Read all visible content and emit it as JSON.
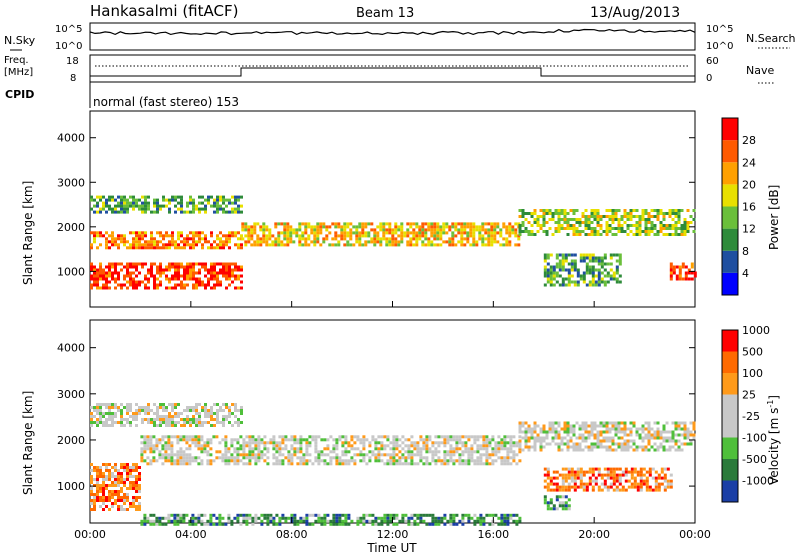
{
  "header": {
    "station": "Hankasalmi (fitACF)",
    "beam": "Beam 13",
    "date": "13/Aug/2013"
  },
  "panels": {
    "nsky_label": "N.Sky",
    "nsky_ticks": [
      "10^5",
      "10^0"
    ],
    "nsearch_label": "N.Search",
    "nsearch_ticks": [
      "10^5",
      "10^0"
    ],
    "freq_label_line1": "Freq.",
    "freq_label_line2": "[MHz]",
    "freq_ticks": [
      "18",
      "8"
    ],
    "nave_label": "Nave",
    "nave_ticks": [
      "60",
      "0"
    ],
    "cpid_label": "CPID",
    "cpid_text": "normal (fast stereo) 153"
  },
  "colors": {
    "power": [
      "#0000ff",
      "#1f4fa0",
      "#2e8b3a",
      "#6abf3a",
      "#e8e000",
      "#ffa000",
      "#ff5a00",
      "#ff0000"
    ],
    "velocity": [
      "#1b3fa6",
      "#2a7a3a",
      "#4fbf3a",
      "#c8c8c8",
      "#c8c8c8",
      "#ff9a1a",
      "#ff6a00",
      "#ff0000"
    ]
  },
  "chart_data": [
    {
      "type": "heatmap",
      "name": "power",
      "ylabel": "Slant Range [km]",
      "yticks": [
        1000,
        2000,
        3000,
        4000
      ],
      "ylim": [
        200,
        4600
      ],
      "xlim": [
        0,
        24
      ],
      "colorbar_label": "Power [dB]",
      "colorbar_ticks": [
        "4",
        "8",
        "12",
        "16",
        "20",
        "24",
        "28"
      ],
      "bands": [
        {
          "t": [
            0,
            6
          ],
          "r": [
            600,
            1200
          ],
          "level": 7
        },
        {
          "t": [
            0,
            6
          ],
          "r": [
            1550,
            1900
          ],
          "level": 6
        },
        {
          "t": [
            0,
            6
          ],
          "r": [
            2300,
            2700
          ],
          "level": 3
        },
        {
          "t": [
            6,
            17
          ],
          "r": [
            1600,
            2100
          ],
          "level": 5
        },
        {
          "t": [
            17,
            24
          ],
          "r": [
            1800,
            2400
          ],
          "level": 4
        },
        {
          "t": [
            18,
            21
          ],
          "r": [
            700,
            1400
          ],
          "level": 3
        },
        {
          "t": [
            23,
            24
          ],
          "r": [
            800,
            1200
          ],
          "level": 7
        }
      ]
    },
    {
      "type": "heatmap",
      "name": "velocity",
      "ylabel": "Slant Range [km]",
      "yticks": [
        1000,
        2000,
        3000,
        4000
      ],
      "ylim": [
        200,
        4600
      ],
      "xlim": [
        0,
        24
      ],
      "xticks": [
        "00:00",
        "04:00",
        "08:00",
        "12:00",
        "16:00",
        "20:00",
        "00:00"
      ],
      "xlabel": "Time UT",
      "colorbar_label": "Velocity [m s",
      "colorbar_label_sup": "-1",
      "colorbar_ticks": [
        "1000",
        "500",
        "100",
        "25",
        "-25",
        "-100",
        "-500",
        "-1000"
      ],
      "bands": [
        {
          "t": [
            0,
            2
          ],
          "r": [
            500,
            1500
          ],
          "level": 6
        },
        {
          "t": [
            0,
            6
          ],
          "r": [
            2300,
            2800
          ],
          "level": 4
        },
        {
          "t": [
            2,
            17
          ],
          "r": [
            1500,
            2100
          ],
          "level": 4
        },
        {
          "t": [
            17,
            24
          ],
          "r": [
            1800,
            2400
          ],
          "level": 4
        },
        {
          "t": [
            18,
            23
          ],
          "r": [
            900,
            1400
          ],
          "level": 6
        },
        {
          "t": [
            18,
            19
          ],
          "r": [
            500,
            800
          ],
          "level": 2
        },
        {
          "t": [
            2,
            17
          ],
          "r": [
            200,
            400
          ],
          "level": 2
        }
      ]
    }
  ]
}
